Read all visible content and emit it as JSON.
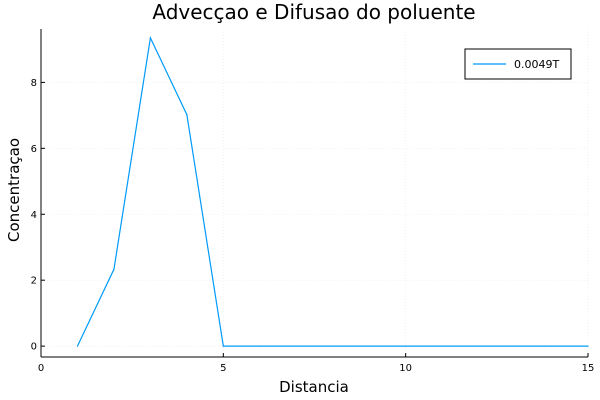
{
  "chart_data": {
    "type": "line",
    "title": "Advecçao e Difusao do poluente",
    "xlabel": "Distancia",
    "ylabel": "Concentraçao",
    "xlim": [
      0,
      15
    ],
    "ylim": [
      -0.33,
      9.62
    ],
    "xticks": [
      0,
      5,
      10,
      15
    ],
    "yticks": [
      0,
      2,
      4,
      6,
      8
    ],
    "grid": true,
    "legend_position": "top-right",
    "series": [
      {
        "name": "0.0049T",
        "color": "#009AFA",
        "x": [
          1,
          2,
          3,
          4,
          5,
          6,
          7,
          8,
          9,
          10,
          11,
          12,
          13,
          14,
          15
        ],
        "y": [
          0,
          2.33,
          9.35,
          7.02,
          0,
          0,
          0,
          0,
          0,
          0,
          0,
          0,
          0,
          0,
          0
        ]
      }
    ]
  }
}
